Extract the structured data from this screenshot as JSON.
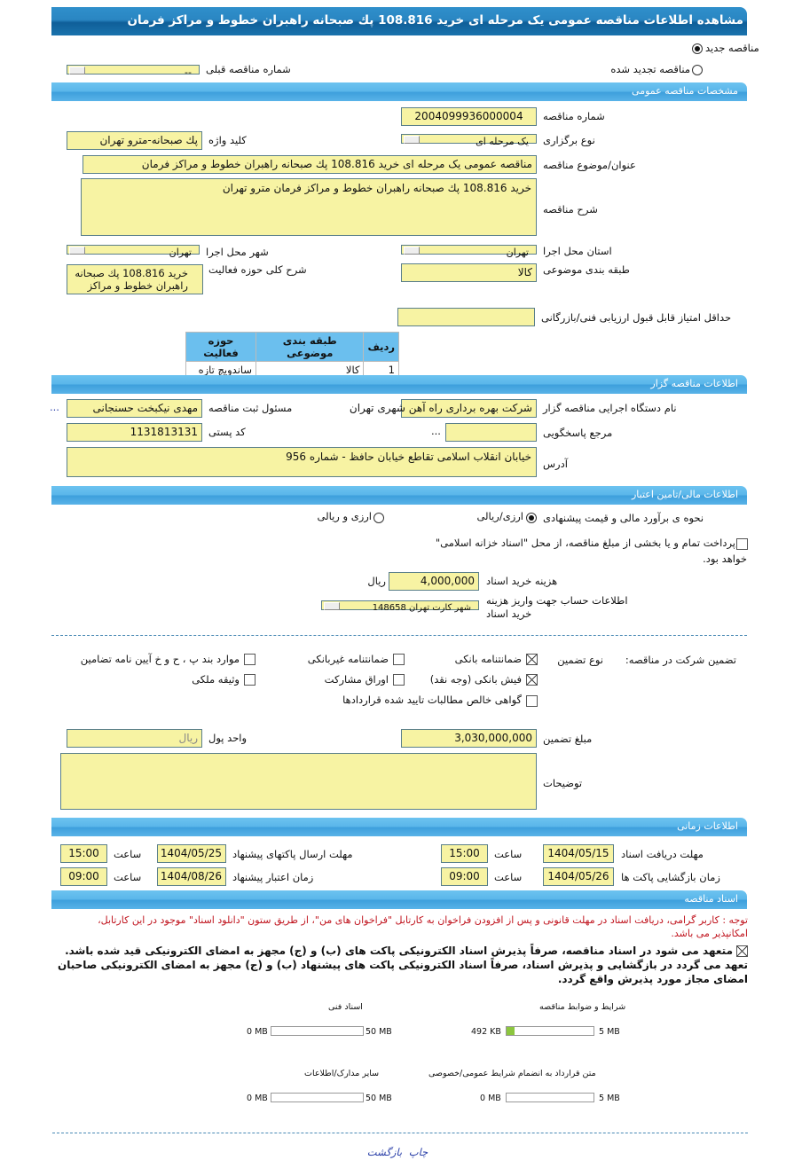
{
  "title": "مشاهده اطلاعات مناقصه عمومی یک مرحله ای خرید 108.816 پك صبحانه راهبران خطوط و مراکز فرمان",
  "tender_status": {
    "new_label": "مناقصه جدید",
    "new_selected": true,
    "renewed_label": "مناقصه تجدید شده",
    "renewed_selected": false,
    "prev_number_label": "شماره مناقصه قبلی",
    "prev_number_value": "--"
  },
  "general": {
    "header": "مشخصات مناقصه عمومی",
    "number_label": "شماره مناقصه",
    "number": "2004099936000004",
    "type_label": "نوع برگزاری",
    "type": "یک مرحله ای",
    "keyword_label": "کلید واژه",
    "keyword": "پك صبحانه-مترو تهران",
    "subject_label": "عنوان/موضوع مناقصه",
    "subject": "مناقصه عمومی یک مرحله ای خرید 108.816 پك صبحانه راهبران خطوط و مراکز فرمان",
    "description_label": "شرح مناقصه",
    "description": "خرید 108.816 پك صبحانه راهبران خطوط و مراکز فرمان مترو تهران",
    "province_label": "استان محل اجرا",
    "province": "تهران",
    "city_label": "شهر محل اجرا",
    "city": "تهران",
    "category_label": "طبقه بندی موضوعی",
    "category": "کالا",
    "activity_label": "شرح کلی حوزه فعالیت",
    "activity": "خرید 108.816 پك صبحانه راهبران خطوط و مراکز",
    "min_score_label": "حداقل امتیاز قابل قبول ارزیابی فنی/بازرگانی",
    "min_score": "",
    "table": {
      "headers": [
        "ردیف",
        "طبقه بندی موضوعی",
        "حوزه فعالیت"
      ],
      "rows": [
        [
          "1",
          "کالا",
          "ساندویچ تازه"
        ]
      ]
    }
  },
  "organizer": {
    "header": "اطلاعات مناقصه گزار",
    "org_label": "نام دستگاه اجرایی مناقصه گزار",
    "org": "شرکت بهره برداری راه آهن شهری تهران",
    "responsible_label": "مسئول ثبت مناقصه",
    "responsible": "مهدی نیکبخت حسنجانی",
    "more": "...",
    "reference_label": "مرجع پاسخگویی",
    "reference": "",
    "reference_more": "...",
    "postal_label": "کد پستی",
    "postal": "1131813131",
    "address_label": "آدرس",
    "address": "خیابان انقلاب اسلامی تقاطع خیابان حافظ - شماره 956"
  },
  "finance": {
    "header": "اطلاعات مالی/تامین اعتبار",
    "estimate_label": "نحوه ی برآورد مالی و قیمت پیشنهادی",
    "opt1": "ارزی/ریالی",
    "opt1_selected": true,
    "opt2": "ارزی و ریالی",
    "opt2_selected": false,
    "treasury_line1": "پرداخت تمام و یا بخشی از مبلغ مناقصه، از محل \"اسناد خزانه اسلامی\"",
    "treasury_line2": "خواهد بود.",
    "treasury_checked": false,
    "doc_cost_label": "هزینه خرید اسناد",
    "doc_cost": "4,000,000",
    "currency": "ریال",
    "account_label_1": "اطلاعات حساب جهت واریز هزینه",
    "account_label_2": "خرید اسناد",
    "account": "شهر کارت تهران 148658"
  },
  "guarantee": {
    "label": "تضمین شرکت در مناقصه:",
    "type_label": "نوع تضمین",
    "options": [
      {
        "label": "ضمانتنامه بانکی",
        "checked": true
      },
      {
        "label": "ضمانتنامه غیربانکی",
        "checked": false
      },
      {
        "label": "موارد بند پ ، ح و خ آیین نامه تضامین",
        "checked": false
      },
      {
        "label": "فیش بانکی (وجه نقد)",
        "checked": true
      },
      {
        "label": "اوراق مشارکت",
        "checked": false
      },
      {
        "label": "وثیقه ملکی",
        "checked": false
      },
      {
        "label": "گواهی خالص مطالبات تایید شده قراردادها",
        "checked": false
      }
    ],
    "amount_label": "مبلغ تضمین",
    "amount": "3,030,000,000",
    "unit_label": "واحد پول",
    "unit": "ریال",
    "notes_label": "توضیحات",
    "notes": ""
  },
  "timing": {
    "header": "اطلاعات زمانی",
    "time_label": "ساعت",
    "receive_label": "مهلت دریافت اسناد",
    "receive_date": "1404/05/15",
    "receive_time": "15:00",
    "send_label": "مهلت ارسال پاکتهای پیشنهاد",
    "send_date": "1404/05/25",
    "send_time": "15:00",
    "open_label": "زمان بازگشایی پاکت ها",
    "open_date": "1404/05/26",
    "open_time": "09:00",
    "valid_label": "زمان اعتبار پیشنهاد",
    "valid_date": "1404/08/26",
    "valid_time": "09:00"
  },
  "documents": {
    "header": "اسناد مناقصه",
    "note_1": "توجه : کاربر گرامی، دریافت اسناد در مهلت قانونی و پس از افزودن فراخوان به کارتابل \"فراخوان های من\"، از طریق ستون \"دانلود اسناد\" موجود در این کارتابل،",
    "note_2": "امکانپذیر می باشد.",
    "commit_1": "متعهد می شود در اسناد مناقصه، صرفاً پذیرش اسناد الکترونیکی پاکت های (ب) و (ج) مجهز به امضای الکترونیکی قید شده باشد.",
    "commit_1_checked": true,
    "commit_2a": "تعهد می گردد در بازگشایی و پذیرش اسناد، صرفاً اسناد الکترونیکی پاکت های پیشنهاد (ب) و (ج) مجهز به امضای الکترونیکی صاحبان",
    "commit_2b": "امضای مجاز مورد پذیرش واقع گردد.",
    "files": [
      {
        "name": "شرایط و ضوابط مناقصه",
        "used": "492 KB",
        "max": "5 MB",
        "fill_percent": 9.6
      },
      {
        "name": "اسناد فنی",
        "used": "0 MB",
        "max": "50 MB",
        "fill_percent": 0
      },
      {
        "name": "متن قرارداد به انضمام شرایط عمومی/خصوصی",
        "used": "0 MB",
        "max": "5 MB",
        "fill_percent": 0
      },
      {
        "name": "سایر مدارک/اطلاعات",
        "used": "0 MB",
        "max": "50 MB",
        "fill_percent": 0
      }
    ]
  },
  "footer": {
    "print": "چاپ",
    "back": "بازگشت"
  },
  "colors": {
    "title_bar": "#1a73ad",
    "section_bar": "#5ab6ea",
    "input_bg": "#f7f3a3",
    "note_red": "#c0141e",
    "progress_fill": "#8cc63f",
    "link": "#2a3fa8"
  }
}
